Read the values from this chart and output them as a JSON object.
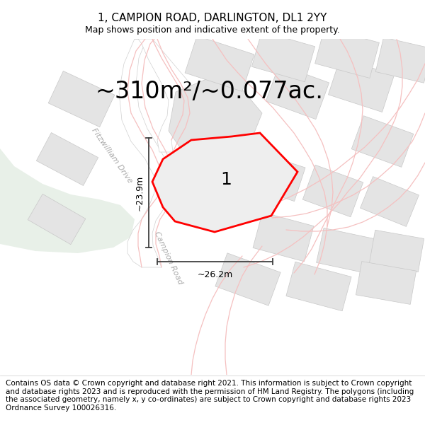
{
  "title": "1, CAMPION ROAD, DARLINGTON, DL1 2YY",
  "subtitle": "Map shows position and indicative extent of the property.",
  "area_text": "~310m²/~0.077ac.",
  "label_number": "1",
  "dim_height": "~23.9m",
  "dim_width": "~26.2m",
  "road_label1": "Fitzwilliam Drive",
  "road_label2": "Campion Road",
  "footer": "Contains OS data © Crown copyright and database right 2021. This information is subject to Crown copyright and database rights 2023 and is reproduced with the permission of HM Land Registry. The polygons (including the associated geometry, namely x, y co-ordinates) are subject to Crown copyright and database rights 2023 Ordnance Survey 100026316.",
  "map_bg": "#f5f5f5",
  "white_bg": "#ffffff",
  "green_color": "#e8f0e8",
  "road_bg": "#ffffff",
  "building_fill": "#e8e8e8",
  "building_edge": "#cccccc",
  "plot_fill": "#e5e5e5",
  "plot_edge": "#ff0000",
  "pink_road": "#f5c0c0",
  "dim_color": "#404040",
  "road_label_color": "#aaaaaa",
  "title_fontsize": 11,
  "subtitle_fontsize": 9,
  "area_fontsize": 24,
  "label_fontsize": 18,
  "footer_fontsize": 7.5
}
